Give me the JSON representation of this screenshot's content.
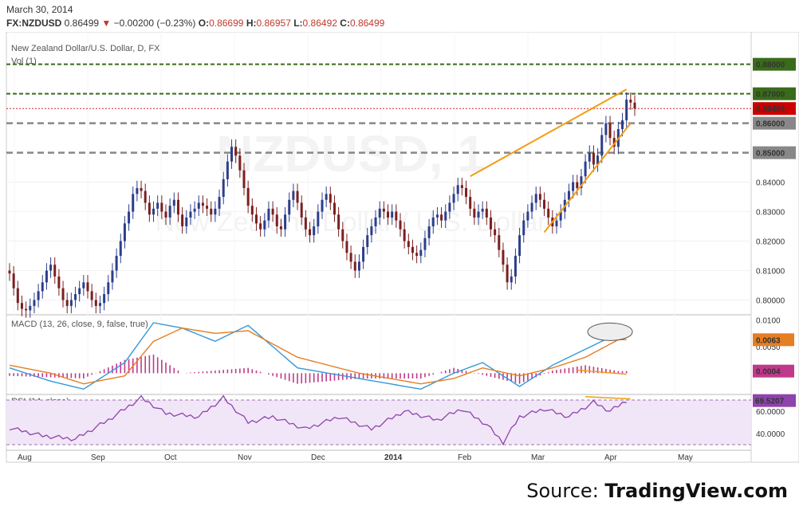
{
  "header": {
    "date": "March 30, 2014",
    "symbol": "FX:NZDUSD",
    "last": "0.86499",
    "change": "−0.00200 (−0.23%)",
    "open_label": "O:",
    "open": "0.86699",
    "high_label": "H:",
    "high": "0.86957",
    "low_label": "L:",
    "low": "0.86492",
    "close_label": "C:",
    "close": "0.86499"
  },
  "source": {
    "prefix": "Source: ",
    "brand": "TradingView.com"
  },
  "watermark": {
    "symbol": "NZDUSD, 1",
    "name": "New Zealand Dollar / U.S. Dollar"
  },
  "colors": {
    "bull": "#2c3e8c",
    "bear": "#7a1f1f",
    "trend": "#f39c12",
    "macd": "#3498db",
    "signal": "#e67e22",
    "hist": "#c0398b",
    "rsi": "#8e44ad",
    "green_level": "#3a6b1a",
    "gray_level": "#888888",
    "last_price": "#cc0000"
  },
  "chart_data": [
    {
      "type": "candlestick",
      "title": "New Zealand Dollar/U.S. Dollar, D, FX",
      "sub_label": "Vol (1)",
      "x_labels": [
        "Aug",
        "Sep",
        "Oct",
        "Nov",
        "Dec",
        "2014",
        "Feb",
        "Mar",
        "Apr",
        "May"
      ],
      "ylim": [
        0.795,
        0.891
      ],
      "y_ticks": [
        "0.80000",
        "0.81000",
        "0.82000",
        "0.83000",
        "0.84000"
      ],
      "levels": [
        {
          "value": 0.88,
          "label": "0.88000",
          "style": "green-dashed"
        },
        {
          "value": 0.87,
          "label": "0.87000",
          "style": "green-dashed"
        },
        {
          "value": 0.86,
          "label": "0.86000",
          "style": "gray-dashed"
        },
        {
          "value": 0.85,
          "label": "0.85000",
          "style": "gray-dashed"
        },
        {
          "value": 0.86499,
          "label": "0.86499",
          "style": "last-price"
        }
      ],
      "closes": [
        0.809,
        0.804,
        0.799,
        0.797,
        0.7965,
        0.798,
        0.8,
        0.803,
        0.806,
        0.81,
        0.812,
        0.808,
        0.804,
        0.8,
        0.798,
        0.8,
        0.802,
        0.804,
        0.806,
        0.803,
        0.8,
        0.798,
        0.799,
        0.802,
        0.806,
        0.81,
        0.815,
        0.82,
        0.826,
        0.83,
        0.836,
        0.838,
        0.837,
        0.833,
        0.829,
        0.831,
        0.833,
        0.83,
        0.828,
        0.832,
        0.834,
        0.829,
        0.825,
        0.828,
        0.83,
        0.831,
        0.833,
        0.832,
        0.831,
        0.829,
        0.831,
        0.835,
        0.841,
        0.847,
        0.852,
        0.849,
        0.844,
        0.838,
        0.832,
        0.829,
        0.826,
        0.824,
        0.827,
        0.831,
        0.829,
        0.825,
        0.824,
        0.829,
        0.834,
        0.837,
        0.833,
        0.828,
        0.824,
        0.822,
        0.825,
        0.83,
        0.834,
        0.836,
        0.833,
        0.829,
        0.824,
        0.82,
        0.816,
        0.813,
        0.81,
        0.813,
        0.818,
        0.822,
        0.825,
        0.828,
        0.831,
        0.83,
        0.828,
        0.83,
        0.827,
        0.824,
        0.82,
        0.818,
        0.816,
        0.815,
        0.817,
        0.821,
        0.825,
        0.828,
        0.829,
        0.827,
        0.83,
        0.833,
        0.836,
        0.839,
        0.838,
        0.835,
        0.831,
        0.828,
        0.83,
        0.831,
        0.828,
        0.824,
        0.822,
        0.817,
        0.812,
        0.806,
        0.808,
        0.815,
        0.822,
        0.827,
        0.83,
        0.833,
        0.836,
        0.834,
        0.831,
        0.828,
        0.825,
        0.827,
        0.83,
        0.834,
        0.837,
        0.84,
        0.838,
        0.842,
        0.847,
        0.85,
        0.846,
        0.849,
        0.856,
        0.86,
        0.855,
        0.852,
        0.858,
        0.861,
        0.868,
        0.867,
        0.865
      ]
    },
    {
      "type": "line",
      "title": "MACD (13, 26, close, 9, false, true)",
      "ylim": [
        -0.004,
        0.011
      ],
      "y_ticks": [
        "0.0100",
        "0.0050"
      ],
      "value_tags": [
        {
          "label": "0.0063",
          "series": "signal"
        },
        {
          "label": "0.0004",
          "series": "histogram"
        }
      ],
      "series": [
        {
          "role": "macd",
          "key_points": [
            [
              0,
              0.001
            ],
            [
              10,
              -0.0015
            ],
            [
              18,
              -0.003
            ],
            [
              28,
              0.002
            ],
            [
              35,
              0.0095
            ],
            [
              42,
              0.0085
            ],
            [
              50,
              0.006
            ],
            [
              58,
              0.009
            ],
            [
              70,
              0.001
            ],
            [
              85,
              -0.001
            ],
            [
              100,
              -0.003
            ],
            [
              108,
              0.0
            ],
            [
              115,
              0.002
            ],
            [
              124,
              -0.0025
            ],
            [
              132,
              0.0015
            ],
            [
              140,
              0.0045
            ],
            [
              148,
              0.0075
            ]
          ]
        },
        {
          "role": "signal",
          "key_points": [
            [
              0,
              0.0015
            ],
            [
              10,
              0.0
            ],
            [
              18,
              -0.002
            ],
            [
              28,
              -0.0005
            ],
            [
              35,
              0.006
            ],
            [
              42,
              0.0085
            ],
            [
              50,
              0.0075
            ],
            [
              58,
              0.008
            ],
            [
              70,
              0.003
            ],
            [
              85,
              0.0
            ],
            [
              100,
              -0.002
            ],
            [
              108,
              -0.001
            ],
            [
              115,
              0.001
            ],
            [
              124,
              -0.0005
            ],
            [
              132,
              0.001
            ],
            [
              140,
              0.003
            ],
            [
              148,
              0.0063
            ]
          ]
        },
        {
          "role": "histogram",
          "key_points": [
            [
              0,
              -0.0005
            ],
            [
              18,
              -0.001
            ],
            [
              28,
              0.0025
            ],
            [
              35,
              0.0035
            ],
            [
              42,
              0.0
            ],
            [
              58,
              0.001
            ],
            [
              70,
              -0.002
            ],
            [
              85,
              -0.001
            ],
            [
              100,
              -0.001
            ],
            [
              108,
              0.001
            ],
            [
              124,
              -0.002
            ],
            [
              132,
              0.0005
            ],
            [
              140,
              0.0015
            ],
            [
              148,
              0.0004
            ]
          ]
        }
      ]
    },
    {
      "type": "line",
      "title": "RSI (14, close)",
      "ylim": [
        25,
        75
      ],
      "y_ticks": [
        "60.0000",
        "40.0000"
      ],
      "band": [
        30,
        70
      ],
      "value_tags": [
        {
          "label": "69.5207",
          "series": "rsi"
        }
      ],
      "series": [
        {
          "role": "rsi",
          "key_points": [
            [
              0,
              45
            ],
            [
              8,
              38
            ],
            [
              16,
              35
            ],
            [
              24,
              52
            ],
            [
              32,
              72
            ],
            [
              38,
              58
            ],
            [
              46,
              55
            ],
            [
              52,
              72
            ],
            [
              58,
              50
            ],
            [
              64,
              55
            ],
            [
              72,
              44
            ],
            [
              80,
              55
            ],
            [
              88,
              44
            ],
            [
              96,
              60
            ],
            [
              104,
              52
            ],
            [
              110,
              62
            ],
            [
              116,
              48
            ],
            [
              120,
              32
            ],
            [
              124,
              55
            ],
            [
              130,
              62
            ],
            [
              136,
              55
            ],
            [
              142,
              68
            ],
            [
              146,
              60
            ],
            [
              150,
              69.5
            ]
          ]
        }
      ]
    }
  ]
}
